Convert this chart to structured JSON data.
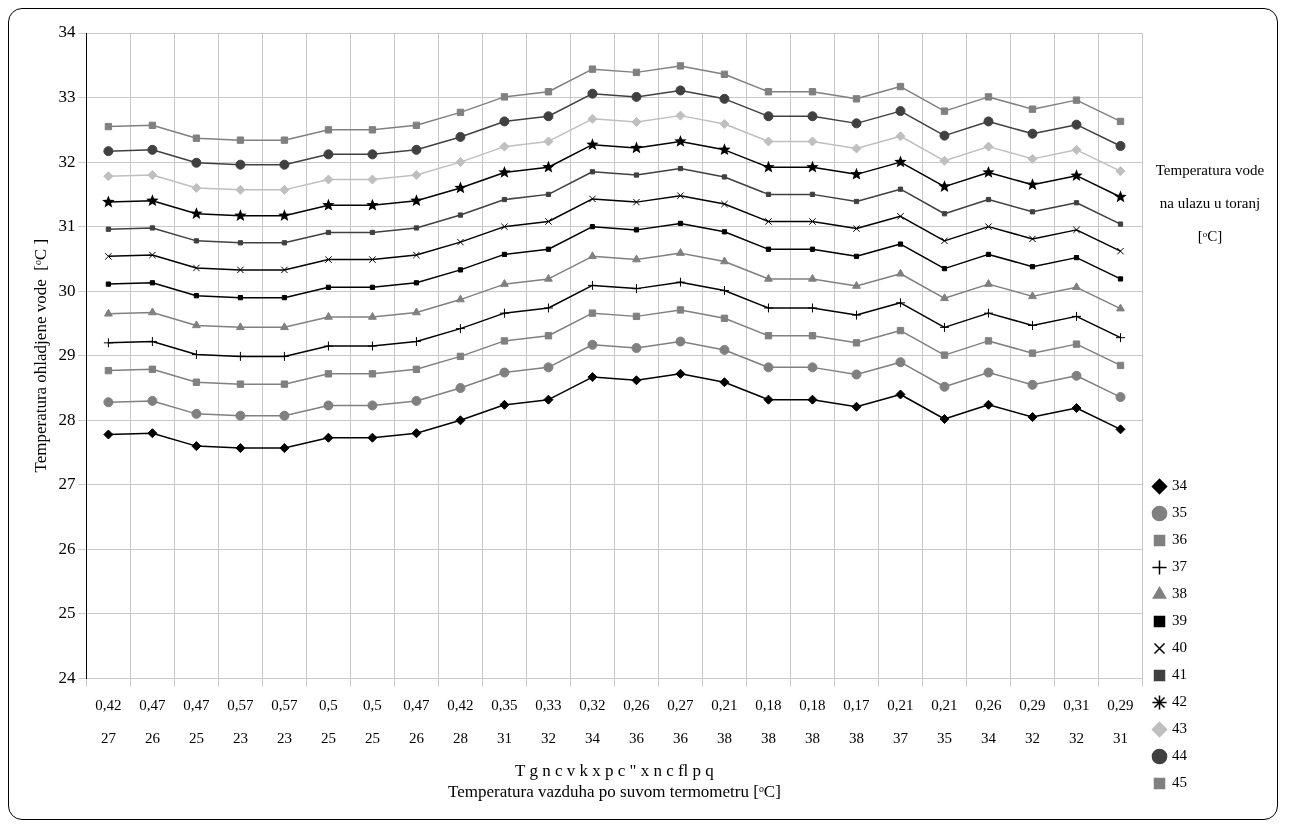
{
  "chart_data": {
    "type": "line",
    "ylabel": "Temperatura ohladjene vode  [ᵒC ]",
    "xlabel": "Temperatura vazduha po suvom termometru [ᵒC]",
    "annotations": [
      "T g n c v k x p c \" x n c fl p q"
    ],
    "legend_title": "Temperatura vode na ulazu u toranj [ᵒC]",
    "categories": [
      "0,42\n27",
      "0,47\n26",
      "0,47\n25",
      "0,57\n23",
      "0,57\n23",
      "0,5\n25",
      "0,5\n25",
      "0,47\n26",
      "0,42\n28",
      "0,35\n31",
      "0,33\n32",
      "0,32\n34",
      "0,26\n36",
      "0,27\n36",
      "0,21\n38",
      "0,18\n38",
      "0,18\n38",
      "0,17\n38",
      "0,21\n37",
      "0,21\n35",
      "0,26\n34",
      "0,29\n32",
      "0,31\n32",
      "0,29\n31"
    ],
    "ylim": [
      24,
      34
    ],
    "yticks": [
      24,
      25,
      26,
      27,
      28,
      29,
      30,
      31,
      32,
      33,
      34
    ],
    "grid": true,
    "legend": "right",
    "series": [
      {
        "name": "34",
        "color": "#000000",
        "marker": "diamond",
        "values": [
          27.78,
          27.8,
          27.6,
          27.57,
          27.57,
          27.73,
          27.73,
          27.8,
          28.0,
          28.24,
          28.32,
          28.67,
          28.62,
          28.72,
          28.59,
          28.32,
          28.32,
          28.21,
          28.4,
          28.02,
          28.24,
          28.05,
          28.19,
          27.86
        ]
      },
      {
        "name": "35",
        "color": "#808080",
        "marker": "circle",
        "values": [
          28.28,
          28.3,
          28.1,
          28.07,
          28.07,
          28.23,
          28.23,
          28.3,
          28.5,
          28.74,
          28.82,
          29.17,
          29.12,
          29.22,
          29.09,
          28.82,
          28.82,
          28.71,
          28.9,
          28.52,
          28.74,
          28.55,
          28.69,
          28.36
        ]
      },
      {
        "name": "36",
        "color": "#808080",
        "marker": "square",
        "values": [
          28.77,
          28.79,
          28.59,
          28.56,
          28.56,
          28.72,
          28.72,
          28.79,
          28.99,
          29.23,
          29.31,
          29.66,
          29.61,
          29.71,
          29.58,
          29.31,
          29.31,
          29.2,
          29.39,
          29.01,
          29.23,
          29.04,
          29.18,
          28.85
        ]
      },
      {
        "name": "37",
        "color": "#000000",
        "marker": "cross",
        "values": [
          29.2,
          29.22,
          29.02,
          28.99,
          28.99,
          29.15,
          29.15,
          29.22,
          29.42,
          29.66,
          29.74,
          30.09,
          30.04,
          30.14,
          30.01,
          29.74,
          29.74,
          29.63,
          29.82,
          29.44,
          29.66,
          29.47,
          29.61,
          29.28
        ]
      },
      {
        "name": "38",
        "color": "#808080",
        "marker": "triangle",
        "values": [
          29.65,
          29.67,
          29.47,
          29.44,
          29.44,
          29.6,
          29.6,
          29.67,
          29.87,
          30.11,
          30.19,
          30.54,
          30.49,
          30.59,
          30.46,
          30.19,
          30.19,
          30.08,
          30.27,
          29.89,
          30.11,
          29.92,
          30.06,
          29.73
        ]
      },
      {
        "name": "39",
        "color": "#000000",
        "marker": "square",
        "values": [
          30.11,
          30.13,
          29.93,
          29.9,
          29.9,
          30.06,
          30.06,
          30.13,
          30.33,
          30.57,
          30.65,
          31.0,
          30.95,
          31.05,
          30.92,
          30.65,
          30.65,
          30.54,
          30.73,
          30.35,
          30.57,
          30.38,
          30.52,
          30.19
        ]
      },
      {
        "name": "40",
        "color": "#000000",
        "marker": "x",
        "values": [
          30.54,
          30.56,
          30.36,
          30.33,
          30.33,
          30.49,
          30.49,
          30.56,
          30.76,
          31.0,
          31.08,
          31.43,
          31.38,
          31.48,
          31.35,
          31.08,
          31.08,
          30.97,
          31.16,
          30.78,
          31.0,
          30.81,
          30.95,
          30.62
        ]
      },
      {
        "name": "41",
        "color": "#404040",
        "marker": "square",
        "values": [
          30.96,
          30.98,
          30.78,
          30.75,
          30.75,
          30.91,
          30.91,
          30.98,
          31.18,
          31.42,
          31.5,
          31.85,
          31.8,
          31.9,
          31.77,
          31.5,
          31.5,
          31.39,
          31.58,
          31.2,
          31.42,
          31.23,
          31.37,
          31.04
        ]
      },
      {
        "name": "42",
        "color": "#000000",
        "marker": "star",
        "values": [
          31.38,
          31.4,
          31.2,
          31.17,
          31.17,
          31.33,
          31.33,
          31.4,
          31.6,
          31.84,
          31.92,
          32.27,
          32.22,
          32.32,
          32.19,
          31.92,
          31.92,
          31.81,
          32.0,
          31.62,
          31.84,
          31.65,
          31.79,
          31.46
        ]
      },
      {
        "name": "43",
        "color": "#bfbfbf",
        "marker": "diamond",
        "values": [
          31.78,
          31.8,
          31.6,
          31.57,
          31.57,
          31.73,
          31.73,
          31.8,
          32.0,
          32.24,
          32.32,
          32.67,
          32.62,
          32.72,
          32.59,
          32.32,
          32.32,
          32.21,
          32.4,
          32.02,
          32.24,
          32.05,
          32.19,
          31.86
        ]
      },
      {
        "name": "44",
        "color": "#404040",
        "marker": "circle",
        "values": [
          32.17,
          32.19,
          31.99,
          31.96,
          31.96,
          32.12,
          32.12,
          32.19,
          32.39,
          32.63,
          32.71,
          33.06,
          33.01,
          33.11,
          32.98,
          32.71,
          32.71,
          32.6,
          32.79,
          32.41,
          32.63,
          32.44,
          32.58,
          32.25
        ]
      },
      {
        "name": "45",
        "color": "#808080",
        "marker": "square",
        "values": [
          32.55,
          32.57,
          32.37,
          32.34,
          32.34,
          32.5,
          32.5,
          32.57,
          32.77,
          33.01,
          33.09,
          33.44,
          33.39,
          33.49,
          33.36,
          33.09,
          33.09,
          32.98,
          33.17,
          32.79,
          33.01,
          32.82,
          32.96,
          32.63
        ]
      }
    ]
  }
}
